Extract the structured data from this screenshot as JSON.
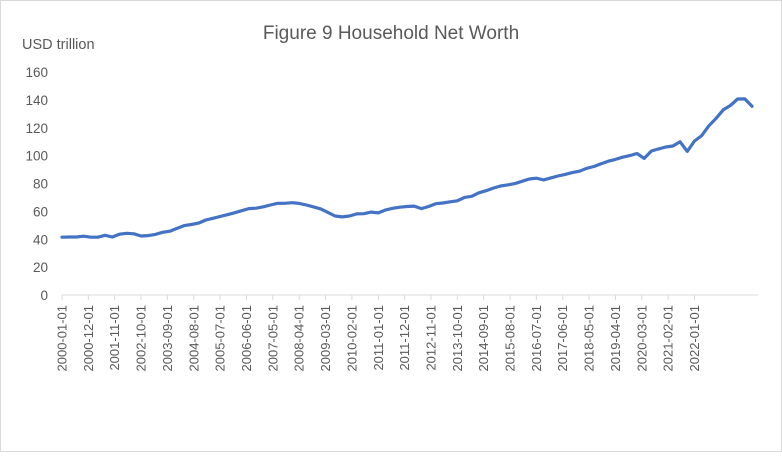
{
  "chart_data": {
    "type": "line",
    "title": "Figure 9 Household Net Worth",
    "y_unit_label": "USD trillion",
    "ylim": [
      0,
      160
    ],
    "y_ticks": [
      0,
      20,
      40,
      60,
      80,
      100,
      120,
      140,
      160
    ],
    "x_tick_labels": [
      "2000-01-01",
      "2000-12-01",
      "2001-11-01",
      "2002-10-01",
      "2003-09-01",
      "2004-08-01",
      "2005-07-01",
      "2006-06-01",
      "2007-05-01",
      "2008-04-01",
      "2009-03-01",
      "2010-02-01",
      "2011-01-01",
      "2011-12-01",
      "2012-11-01",
      "2013-10-01",
      "2014-09-01",
      "2015-08-01",
      "2016-07-01",
      "2017-06-01",
      "2018-05-01",
      "2019-04-01",
      "2020-03-01",
      "2021-02-01",
      "2022-01-01"
    ],
    "grid": false,
    "legend": "none",
    "line_color": "#4472c4",
    "series": [
      {
        "x_start": "2000-01-01",
        "frequency": "quarterly",
        "values": [
          41.5,
          41.6,
          41.6,
          42.2,
          41.5,
          41.5,
          42.8,
          41.6,
          43.6,
          44.3,
          43.9,
          42.3,
          42.6,
          43.5,
          45.0,
          45.8,
          47.8,
          49.8,
          50.6,
          51.6,
          53.8,
          55.0,
          56.3,
          57.6,
          59.0,
          60.5,
          62.0,
          62.3,
          63.3,
          64.6,
          65.8,
          65.8,
          66.2,
          65.7,
          64.6,
          63.2,
          61.8,
          59.3,
          56.7,
          56.0,
          56.7,
          58.2,
          58.3,
          59.5,
          58.9,
          61.0,
          62.2,
          63.0,
          63.5,
          63.8,
          62.0,
          63.5,
          65.5,
          66.0,
          66.9,
          67.6,
          70.0,
          70.8,
          73.3,
          74.8,
          76.7,
          78.2,
          79.0,
          79.9,
          81.6,
          83.2,
          83.8,
          82.6,
          84.0,
          85.4,
          86.5,
          87.8,
          88.8,
          90.9,
          92.2,
          94.2,
          96.0,
          97.3,
          98.9,
          100.0,
          101.5,
          98.0,
          103.3,
          104.8,
          106.2,
          106.9,
          109.9,
          103.0,
          110.5,
          114.4,
          121.4,
          126.8,
          132.9,
          136.0,
          140.6,
          140.7,
          135.4
        ]
      }
    ]
  }
}
